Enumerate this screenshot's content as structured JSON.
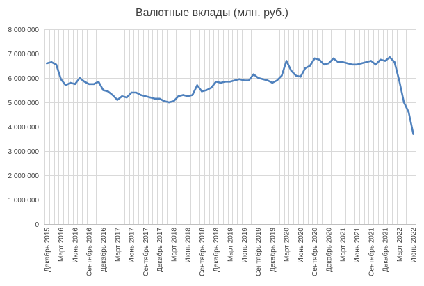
{
  "chart_data": {
    "type": "line",
    "title": "Валютные вклады (млн. руб.)",
    "xlabel": "",
    "ylabel": "",
    "ylim": [
      0,
      8000000
    ],
    "y_ticks": [
      0,
      1000000,
      2000000,
      3000000,
      4000000,
      5000000,
      6000000,
      7000000,
      8000000
    ],
    "y_tick_labels": [
      "0",
      "1 000 000",
      "2 000 000",
      "3 000 000",
      "4 000 000",
      "5 000 000",
      "6 000 000",
      "7 000 000",
      "8 000 000"
    ],
    "grid": true,
    "line_color": "#4f81bd",
    "x_tick_labels": [
      "Декабрь 2015",
      "Март 2016",
      "Июнь 2016",
      "Сентябрь 2016",
      "Декабрь 2016",
      "Март 2017",
      "Июнь 2017",
      "Сентябрь 2017",
      "Декабрь 2017",
      "Март 2018",
      "Июнь 2018",
      "Сентябрь 2018",
      "Декабрь 2018",
      "Март 2019",
      "Июнь 2019",
      "Сентябрь 2019",
      "Декабрь 2019",
      "Март 2020",
      "Июнь 2020",
      "Сентябрь 2020",
      "Декабрь 2020",
      "Март 2021",
      "Июнь 2021",
      "Сентябрь 2021",
      "Декабрь 2021",
      "Март 2022",
      "Июнь 2022"
    ],
    "series": [
      {
        "values": [
          6600000,
          6650000,
          6550000,
          5950000,
          5700000,
          5800000,
          5750000,
          6000000,
          5850000,
          5750000,
          5750000,
          5850000,
          5500000,
          5450000,
          5300000,
          5100000,
          5250000,
          5200000,
          5400000,
          5400000,
          5300000,
          5250000,
          5200000,
          5150000,
          5150000,
          5050000,
          5000000,
          5050000,
          5250000,
          5300000,
          5250000,
          5300000,
          5700000,
          5450000,
          5500000,
          5600000,
          5850000,
          5800000,
          5850000,
          5850000,
          5900000,
          5950000,
          5900000,
          5900000,
          6150000,
          6000000,
          5950000,
          5900000,
          5800000,
          5900000,
          6100000,
          6700000,
          6300000,
          6100000,
          6050000,
          6400000,
          6500000,
          6800000,
          6750000,
          6550000,
          6600000,
          6800000,
          6650000,
          6650000,
          6600000,
          6550000,
          6550000,
          6600000,
          6650000,
          6700000,
          6550000,
          6750000,
          6700000,
          6850000,
          6650000,
          5900000,
          5000000,
          4600000,
          3700000
        ]
      }
    ]
  }
}
